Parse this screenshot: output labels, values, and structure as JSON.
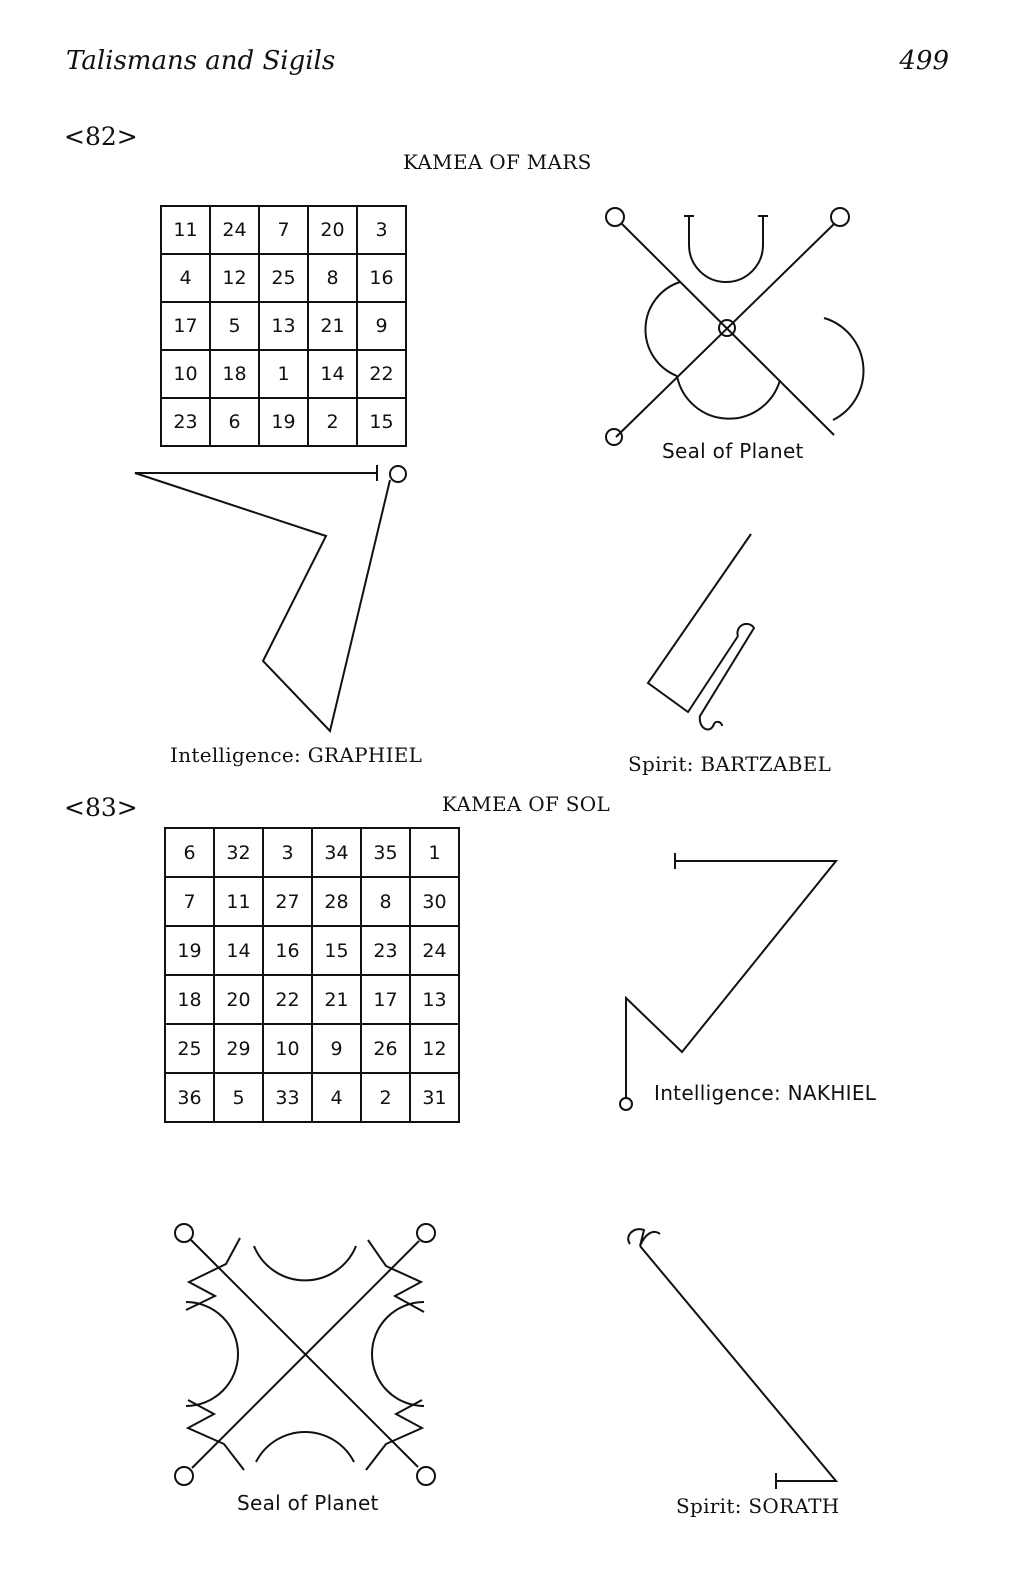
{
  "header": {
    "running_head": "Talismans and Sigils",
    "page_number": "499"
  },
  "figures": [
    {
      "number": "<82>",
      "title": "KAMEA OF MARS",
      "kamea": [
        [
          "11",
          "24",
          "7",
          "20",
          "3"
        ],
        [
          "4",
          "12",
          "25",
          "8",
          "16"
        ],
        [
          "17",
          "5",
          "13",
          "21",
          "9"
        ],
        [
          "10",
          "18",
          "1",
          "14",
          "22"
        ],
        [
          "23",
          "6",
          "19",
          "2",
          "15"
        ]
      ],
      "seal_label": "Seal of Planet",
      "intelligence_label": "Intelligence: GRAPHIEL",
      "spirit_label": "Spirit: BARTZABEL"
    },
    {
      "number": "<83>",
      "title": "KAMEA OF SOL",
      "kamea": [
        [
          "6",
          "32",
          "3",
          "34",
          "35",
          "1"
        ],
        [
          "7",
          "11",
          "27",
          "28",
          "8",
          "30"
        ],
        [
          "19",
          "14",
          "16",
          "15",
          "23",
          "24"
        ],
        [
          "18",
          "20",
          "22",
          "21",
          "17",
          "13"
        ],
        [
          "25",
          "29",
          "10",
          "9",
          "26",
          "12"
        ],
        [
          "36",
          "5",
          "33",
          "4",
          "2",
          "31"
        ]
      ],
      "intelligence_label": "Intelligence: NAKHIEL",
      "seal_label": "Seal of Planet",
      "spirit_label": "Spirit: SORATH"
    }
  ]
}
